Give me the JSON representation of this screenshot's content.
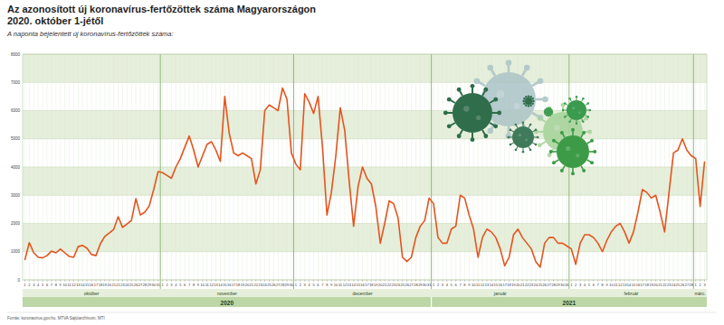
{
  "chart_data": {
    "type": "line",
    "title": "Az azonosított új koronavírus-fertőzöttek száma Magyarországon",
    "subtitle": "2020. október 1-jétől",
    "y_label": "A naponta bejelentett új koronavírus-fertőzöttek száma:",
    "source": "Forrás: koronavirus.gov.hu, MTVA Sajtóarchívum, MTI",
    "color": "#e4541f",
    "grid": true,
    "data_labels": false,
    "ylim": [
      0,
      8000
    ],
    "yticks": [
      0,
      1000,
      2000,
      3000,
      4000,
      5000,
      6000,
      7000,
      8000
    ],
    "x_groups": [
      {
        "label": "2020",
        "months": [
          "október",
          "november",
          "december"
        ]
      },
      {
        "label": "2021",
        "months": [
          "január",
          "február",
          "márc."
        ]
      }
    ],
    "categories": [
      "1",
      "2",
      "3",
      "4",
      "5",
      "6",
      "7",
      "8",
      "9",
      "10",
      "11",
      "12",
      "13",
      "14",
      "15",
      "16",
      "17",
      "18",
      "19",
      "20",
      "21",
      "22",
      "23",
      "24",
      "25",
      "26",
      "27",
      "28",
      "29",
      "30",
      "31",
      "1",
      "2",
      "3",
      "4",
      "5",
      "6",
      "7",
      "8",
      "9",
      "10",
      "11",
      "12",
      "13",
      "14",
      "15",
      "16",
      "17",
      "18",
      "19",
      "20",
      "21",
      "22",
      "23",
      "24",
      "25",
      "26",
      "27",
      "28",
      "29",
      "30",
      "1",
      "2",
      "3",
      "4",
      "5",
      "6",
      "7",
      "8",
      "9",
      "10",
      "11",
      "12",
      "13",
      "14",
      "15",
      "16",
      "17",
      "18",
      "19",
      "20",
      "21",
      "22",
      "23",
      "24",
      "25",
      "26",
      "27",
      "28",
      "29",
      "30",
      "31",
      "1",
      "2",
      "3",
      "4",
      "5",
      "6",
      "7",
      "8",
      "9",
      "10",
      "11",
      "12",
      "13",
      "14",
      "15",
      "16",
      "17",
      "18",
      "19",
      "20",
      "21",
      "22",
      "23",
      "24",
      "25",
      "26",
      "27",
      "28",
      "29",
      "30",
      "31",
      "1",
      "2",
      "3",
      "4",
      "5",
      "6",
      "7",
      "8",
      "9",
      "10",
      "11",
      "12",
      "13",
      "14",
      "15",
      "16",
      "17",
      "18",
      "19",
      "20",
      "21",
      "22",
      "23",
      "24",
      "25",
      "26",
      "27",
      "28",
      "1",
      "2",
      "3"
    ],
    "values": [
      700,
      1320,
      960,
      800,
      780,
      860,
      1020,
      960,
      1090,
      960,
      830,
      800,
      1180,
      1220,
      1120,
      900,
      860,
      1280,
      1540,
      1660,
      1790,
      2240,
      1860,
      1980,
      2110,
      2880,
      2300,
      2400,
      2620,
      3200,
      3840,
      3800,
      3700,
      3600,
      4000,
      4300,
      4700,
      5100,
      4600,
      4000,
      4400,
      4800,
      4900,
      4600,
      4200,
      6500,
      5200,
      4500,
      4400,
      4500,
      4400,
      4300,
      3400,
      3900,
      6000,
      6200,
      6100,
      6000,
      6800,
      6400,
      4500,
      4100,
      3900,
      6600,
      6300,
      5900,
      6500,
      4700,
      2300,
      3100,
      4400,
      6100,
      5300,
      3500,
      1900,
      3300,
      4000,
      3600,
      3400,
      2600,
      1300,
      2000,
      2800,
      2700,
      2200,
      800,
      650,
      800,
      1500,
      1900,
      2100,
      2900,
      2700,
      1500,
      1300,
      1300,
      1800,
      1900,
      3000,
      2900,
      2300,
      1800,
      800,
      1500,
      1800,
      1700,
      1500,
      1100,
      500,
      800,
      1600,
      1800,
      1500,
      1300,
      1100,
      650,
      450,
      1300,
      1500,
      1500,
      1300,
      1300,
      1200,
      1100,
      550,
      1300,
      1600,
      1600,
      1500,
      1300,
      1000,
      1400,
      1700,
      1900,
      2000,
      1700,
      1300,
      1700,
      2400,
      3200,
      3100,
      2900,
      3000,
      2400,
      1700,
      3100,
      4500,
      4600,
      5000,
      4600,
      4400,
      4300,
      2600,
      4200
    ]
  }
}
